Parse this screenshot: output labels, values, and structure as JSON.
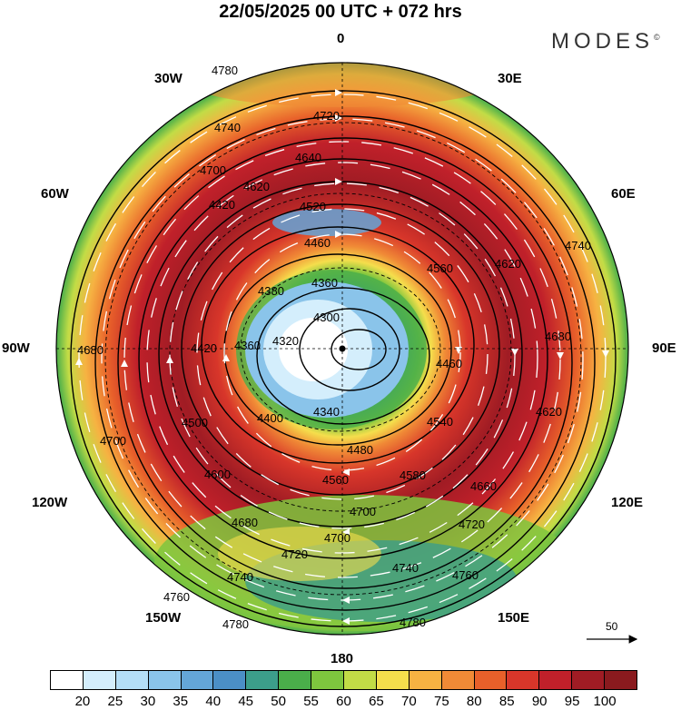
{
  "header": {
    "title": "22/05/2025  00 UTC  + 072 hrs",
    "brand": "MODES",
    "brand_mark": "©"
  },
  "longitude_labels": {
    "lon_0": "0",
    "lon_30e": "30E",
    "lon_60e": "60E",
    "lon_90e": "90E",
    "lon_120e": "120E",
    "lon_150e": "150E",
    "lon_180": "180",
    "lon_150w": "150W",
    "lon_120w": "120W",
    "lon_90w": "90W",
    "lon_60w": "60W",
    "lon_30w": "30W"
  },
  "contour_labels": [
    "4780",
    "4720",
    "4740",
    "4700",
    "4640",
    "4620",
    "4520",
    "4460",
    "4360",
    "4380",
    "4300",
    "4320",
    "4360",
    "4420",
    "4340",
    "4400",
    "4500",
    "4540",
    "4560",
    "4580",
    "4600",
    "4620",
    "4660",
    "4680",
    "4700",
    "4720",
    "4740",
    "4760",
    "4780",
    "4620",
    "4680",
    "4740",
    "4760",
    "4780",
    "4700",
    "4720",
    "4740",
    "4680",
    "4700",
    "4460",
    "4420",
    "4480",
    "4560"
  ],
  "reference_vector": {
    "value": "50"
  },
  "colorbar": {
    "tick_labels": [
      "20",
      "25",
      "30",
      "35",
      "40",
      "45",
      "50",
      "55",
      "60",
      "65",
      "70",
      "75",
      "80",
      "85",
      "90",
      "95",
      "100"
    ],
    "colors": [
      "#ffffff",
      "#d4eefc",
      "#b4def6",
      "#8ac4ea",
      "#64a6d8",
      "#4b8fc6",
      "#3c9e8a",
      "#4aae4a",
      "#7ec63e",
      "#c2dc46",
      "#f5de4c",
      "#f6b242",
      "#f08a36",
      "#e8602a",
      "#d8362a",
      "#c0202a",
      "#a01c24",
      "#8a1a1e"
    ]
  },
  "map": {
    "field_colors": {
      "outer": "#4aae4a",
      "wind_strong": "#c0202a",
      "wind_peak": "#a01c24",
      "wind_mid": "#e8602a",
      "wind_moderate": "#f6b242",
      "light": "#c2dc46",
      "calm_green": "#3c9e8a",
      "calm_blue": "#64a6d8",
      "calm_pale": "#d4eefc",
      "center": "#ffffff"
    }
  }
}
